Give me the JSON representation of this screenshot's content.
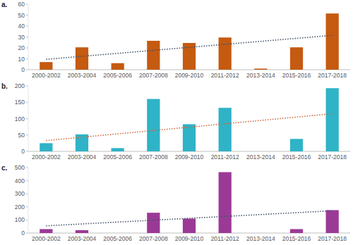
{
  "chart_data": [
    {
      "type": "bar",
      "title": "a.",
      "categories": [
        "2000-2002",
        "2003-2004",
        "2005-2006",
        "2007-2008",
        "2009-2010",
        "2011-2012",
        "2013-2014",
        "2015-2016",
        "2017-2018"
      ],
      "series": [
        {
          "type": "bar",
          "color": "#c55a11",
          "values": [
            7,
            20.5,
            6,
            26.5,
            24.5,
            29.5,
            1,
            20.5,
            51.5
          ]
        },
        {
          "type": "line",
          "line_style": "dotted",
          "color": "#44546a",
          "values": [
            9.5,
            12.25,
            15,
            17.75,
            20.5,
            23.25,
            26,
            28.75,
            31.5
          ]
        }
      ],
      "ylim": [
        0,
        60
      ],
      "yticks": [
        0,
        10,
        20,
        30,
        40,
        50,
        60
      ],
      "grid": false
    },
    {
      "type": "bar",
      "title": "b.",
      "categories": [
        "2000-2002",
        "2003-2004",
        "2005-2006",
        "2007-2008",
        "2009-2010",
        "2011-2012",
        "2013-2014",
        "2015-2016",
        "2017-2018"
      ],
      "series": [
        {
          "type": "bar",
          "color": "#2fb3c7",
          "values": [
            25,
            52,
            10,
            160,
            83,
            133,
            0,
            38,
            193
          ]
        },
        {
          "type": "line",
          "line_style": "dotted",
          "color": "#d0683a",
          "values": [
            33,
            43.25,
            53.5,
            63.75,
            74,
            84.25,
            94.5,
            104.75,
            115
          ]
        }
      ],
      "ylim": [
        0,
        200
      ],
      "yticks": [
        0,
        50,
        100,
        150,
        200
      ],
      "grid": false
    },
    {
      "type": "bar",
      "title": "c.",
      "categories": [
        "2000-2002",
        "2003-2004",
        "2005-2006",
        "2007-2008",
        "2009-2010",
        "2011-2012",
        "2013-2014",
        "2015-2016",
        "2017-2018"
      ],
      "series": [
        {
          "type": "bar",
          "color": "#9b3a96",
          "values": [
            30,
            22,
            0,
            155,
            110,
            465,
            0,
            30,
            175
          ]
        },
        {
          "type": "line",
          "line_style": "dotted",
          "color": "#44546a",
          "values": [
            55,
            69.4,
            83.8,
            98.1,
            112.5,
            126.9,
            141.3,
            155.6,
            170
          ]
        }
      ],
      "ylim": [
        0,
        500
      ],
      "yticks": [
        0,
        100,
        200,
        300,
        400,
        500
      ],
      "grid": false
    }
  ]
}
